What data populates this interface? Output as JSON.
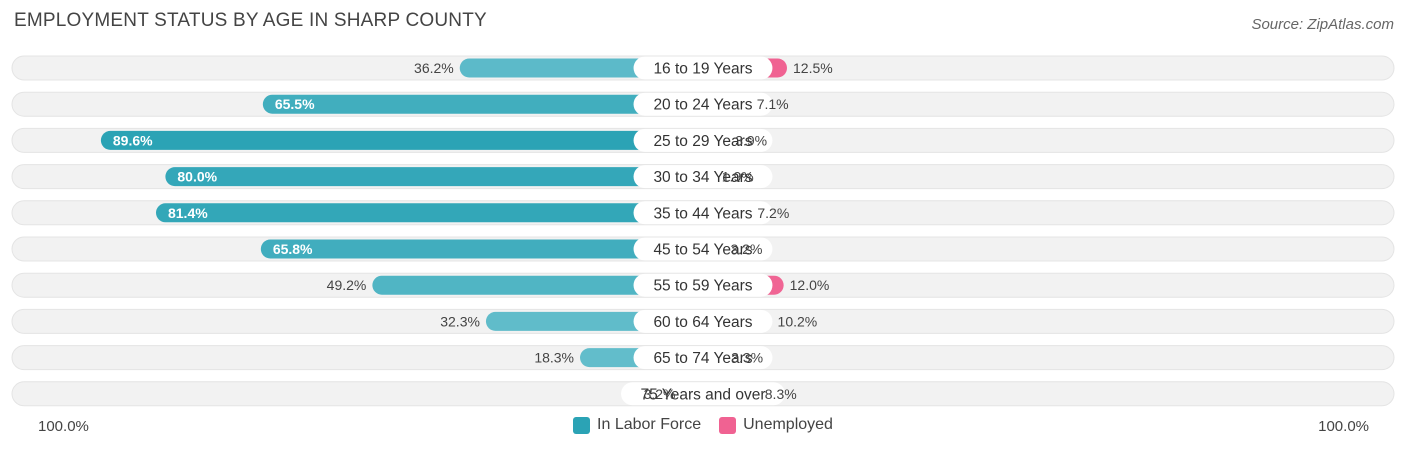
{
  "title": "EMPLOYMENT STATUS BY AGE IN SHARP COUNTY",
  "source": "Source: ZipAtlas.com",
  "colors": {
    "labor_force": "#2ba3b5",
    "labor_force_light": "#62bdcb",
    "unemployed": "#f06292",
    "unemployed_light": "#f7a8c2",
    "row_bg": "#f2f2f2"
  },
  "chart_data": {
    "type": "bar",
    "orientation": "horizontal-diverging",
    "title": "EMPLOYMENT STATUS BY AGE IN SHARP COUNTY",
    "categories": [
      "16 to 19 Years",
      "20 to 24 Years",
      "25 to 29 Years",
      "30 to 34 Years",
      "35 to 44 Years",
      "45 to 54 Years",
      "55 to 59 Years",
      "60 to 64 Years",
      "65 to 74 Years",
      "75 Years and over"
    ],
    "series": [
      {
        "name": "In Labor Force",
        "values": [
          36.2,
          65.5,
          89.6,
          80.0,
          81.4,
          65.8,
          49.2,
          32.3,
          18.3,
          3.2
        ],
        "labels": [
          "36.2%",
          "65.5%",
          "89.6%",
          "80.0%",
          "81.4%",
          "65.8%",
          "49.2%",
          "32.3%",
          "18.3%",
          "3.2%"
        ]
      },
      {
        "name": "Unemployed",
        "values": [
          12.5,
          7.1,
          3.9,
          1.9,
          7.2,
          3.2,
          12.0,
          10.2,
          3.3,
          8.3
        ],
        "labels": [
          "12.5%",
          "7.1%",
          "3.9%",
          "1.9%",
          "7.2%",
          "3.2%",
          "12.0%",
          "10.2%",
          "3.3%",
          "8.3%"
        ]
      }
    ],
    "axis_left_label": "100.0%",
    "axis_right_label": "100.0%",
    "legend_position": "bottom-center"
  }
}
